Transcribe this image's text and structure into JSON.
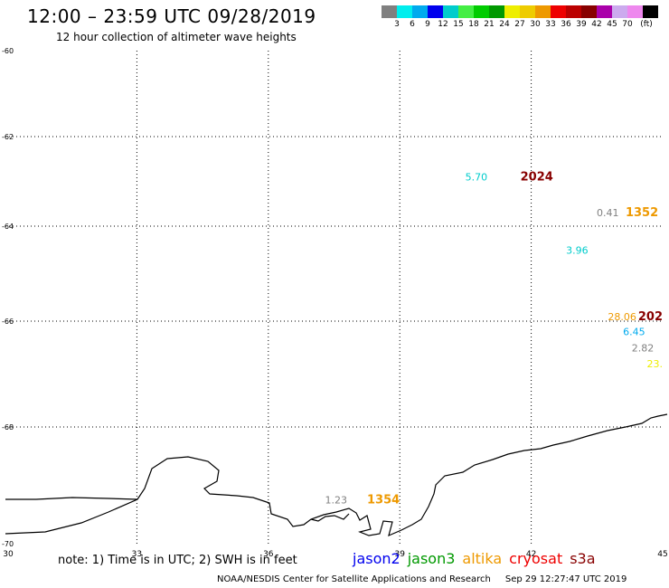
{
  "header": {
    "title": "12:00 – 23:59 UTC 09/28/2019",
    "subtitle": "12 hour collection of altimeter wave heights"
  },
  "legend": {
    "colors": [
      "#808080",
      "#00eeee",
      "#00aaee",
      "#0000ee",
      "#00cccc",
      "#44ee44",
      "#00cc00",
      "#009900",
      "#eeee00",
      "#eecc00",
      "#ee9900",
      "#ee0000",
      "#bb0000",
      "#880000",
      "#aa00aa",
      "#ccaaee",
      "#ee88ee",
      "#000000"
    ],
    "labels": [
      "3",
      "6",
      "9",
      "12",
      "15",
      "18",
      "21",
      "24",
      "27",
      "30",
      "33",
      "36",
      "39",
      "42",
      "45",
      "70"
    ],
    "unit": "(ft)"
  },
  "axes": {
    "x_ticks": [
      "30",
      "33",
      "36",
      "39",
      "42",
      "45"
    ],
    "y_ticks": [
      "-60",
      "-62",
      "-64",
      "-66",
      "-68",
      "-70"
    ],
    "x_range": [
      30,
      45
    ],
    "y_range": [
      -60,
      -70
    ]
  },
  "observations": [
    {
      "value": "5.70",
      "color": "#00cccc",
      "lon": 41.0,
      "lat": -62.9,
      "size": 11
    },
    {
      "value": "2024",
      "color": "#880000",
      "lon": 42.5,
      "lat": -62.9,
      "size": 13,
      "bold": true
    },
    {
      "value": "0.41",
      "color": "#808080",
      "lon": 44.0,
      "lat": -63.7,
      "size": 11
    },
    {
      "value": "1352",
      "color": "#ee9900",
      "lon": 44.9,
      "lat": -63.7,
      "size": 13,
      "bold": true
    },
    {
      "value": "3.96",
      "color": "#00cccc",
      "lon": 43.3,
      "lat": -64.5,
      "size": 11
    },
    {
      "value": "28.06",
      "color": "#ee9900",
      "lon": 44.4,
      "lat": -65.9,
      "size": 11
    },
    {
      "value": "202",
      "color": "#880000",
      "lon": 45.0,
      "lat": -65.9,
      "size": 13,
      "bold": true
    },
    {
      "value": "6.45",
      "color": "#00aaee",
      "lon": 44.6,
      "lat": -66.2,
      "size": 11
    },
    {
      "value": "2.82",
      "color": "#808080",
      "lon": 44.8,
      "lat": -66.5,
      "size": 11
    },
    {
      "value": "23.",
      "color": "#eeee00",
      "lon": 45.0,
      "lat": -66.8,
      "size": 11
    },
    {
      "value": "1.23",
      "color": "#808080",
      "lon": 37.8,
      "lat": -69.25,
      "size": 11
    },
    {
      "value": "1354",
      "color": "#ee9900",
      "lon": 39.0,
      "lat": -69.25,
      "size": 13,
      "bold": true
    }
  ],
  "note": "note: 1) Time is in UTC; 2) SWH is in feet",
  "satellites": [
    {
      "name": "jason2",
      "color": "#0000ee"
    },
    {
      "name": "jason3",
      "color": "#009900"
    },
    {
      "name": "altika",
      "color": "#ee9900"
    },
    {
      "name": "cryosat",
      "color": "#ee0000"
    },
    {
      "name": "s3a",
      "color": "#880000"
    }
  ],
  "footer": {
    "credit": "NOAA/NESDIS Center for Satellite Applications and Research",
    "timestamp": "Sep 29 12:27:47 UTC 2019"
  }
}
